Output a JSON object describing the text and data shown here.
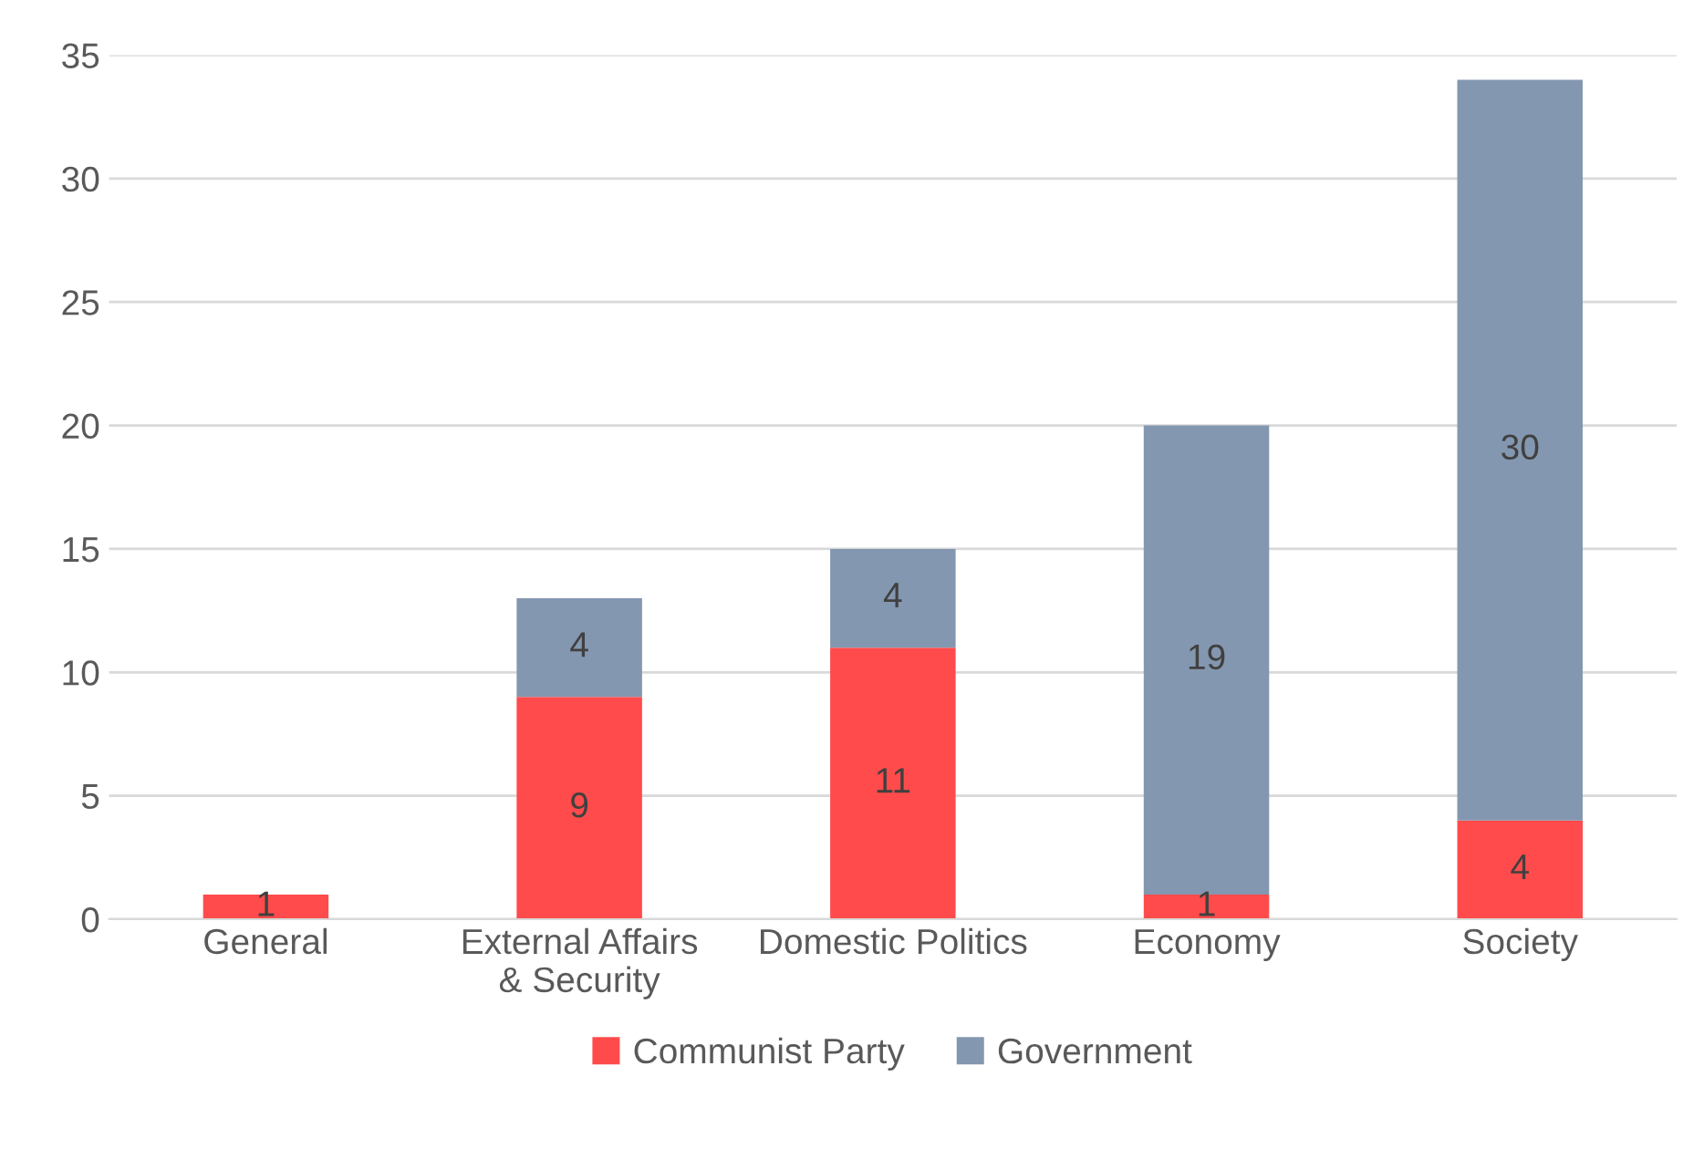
{
  "chart_data": {
    "type": "bar",
    "stacked": true,
    "categories": [
      "General",
      "External Affairs\n& Security",
      "Domestic Politics",
      "Economy",
      "Society"
    ],
    "series": [
      {
        "name": "Communist Party",
        "color": "#ff4b4b",
        "values": [
          1,
          9,
          11,
          1,
          4
        ]
      },
      {
        "name": "Government",
        "color": "#8497b0",
        "values": [
          null,
          4,
          4,
          19,
          30
        ]
      }
    ],
    "ylim": [
      0,
      35
    ],
    "yticks": [
      0,
      5,
      10,
      15,
      20,
      25,
      30,
      35
    ],
    "grid": "y",
    "legend": "bottom",
    "data_labels": true
  }
}
